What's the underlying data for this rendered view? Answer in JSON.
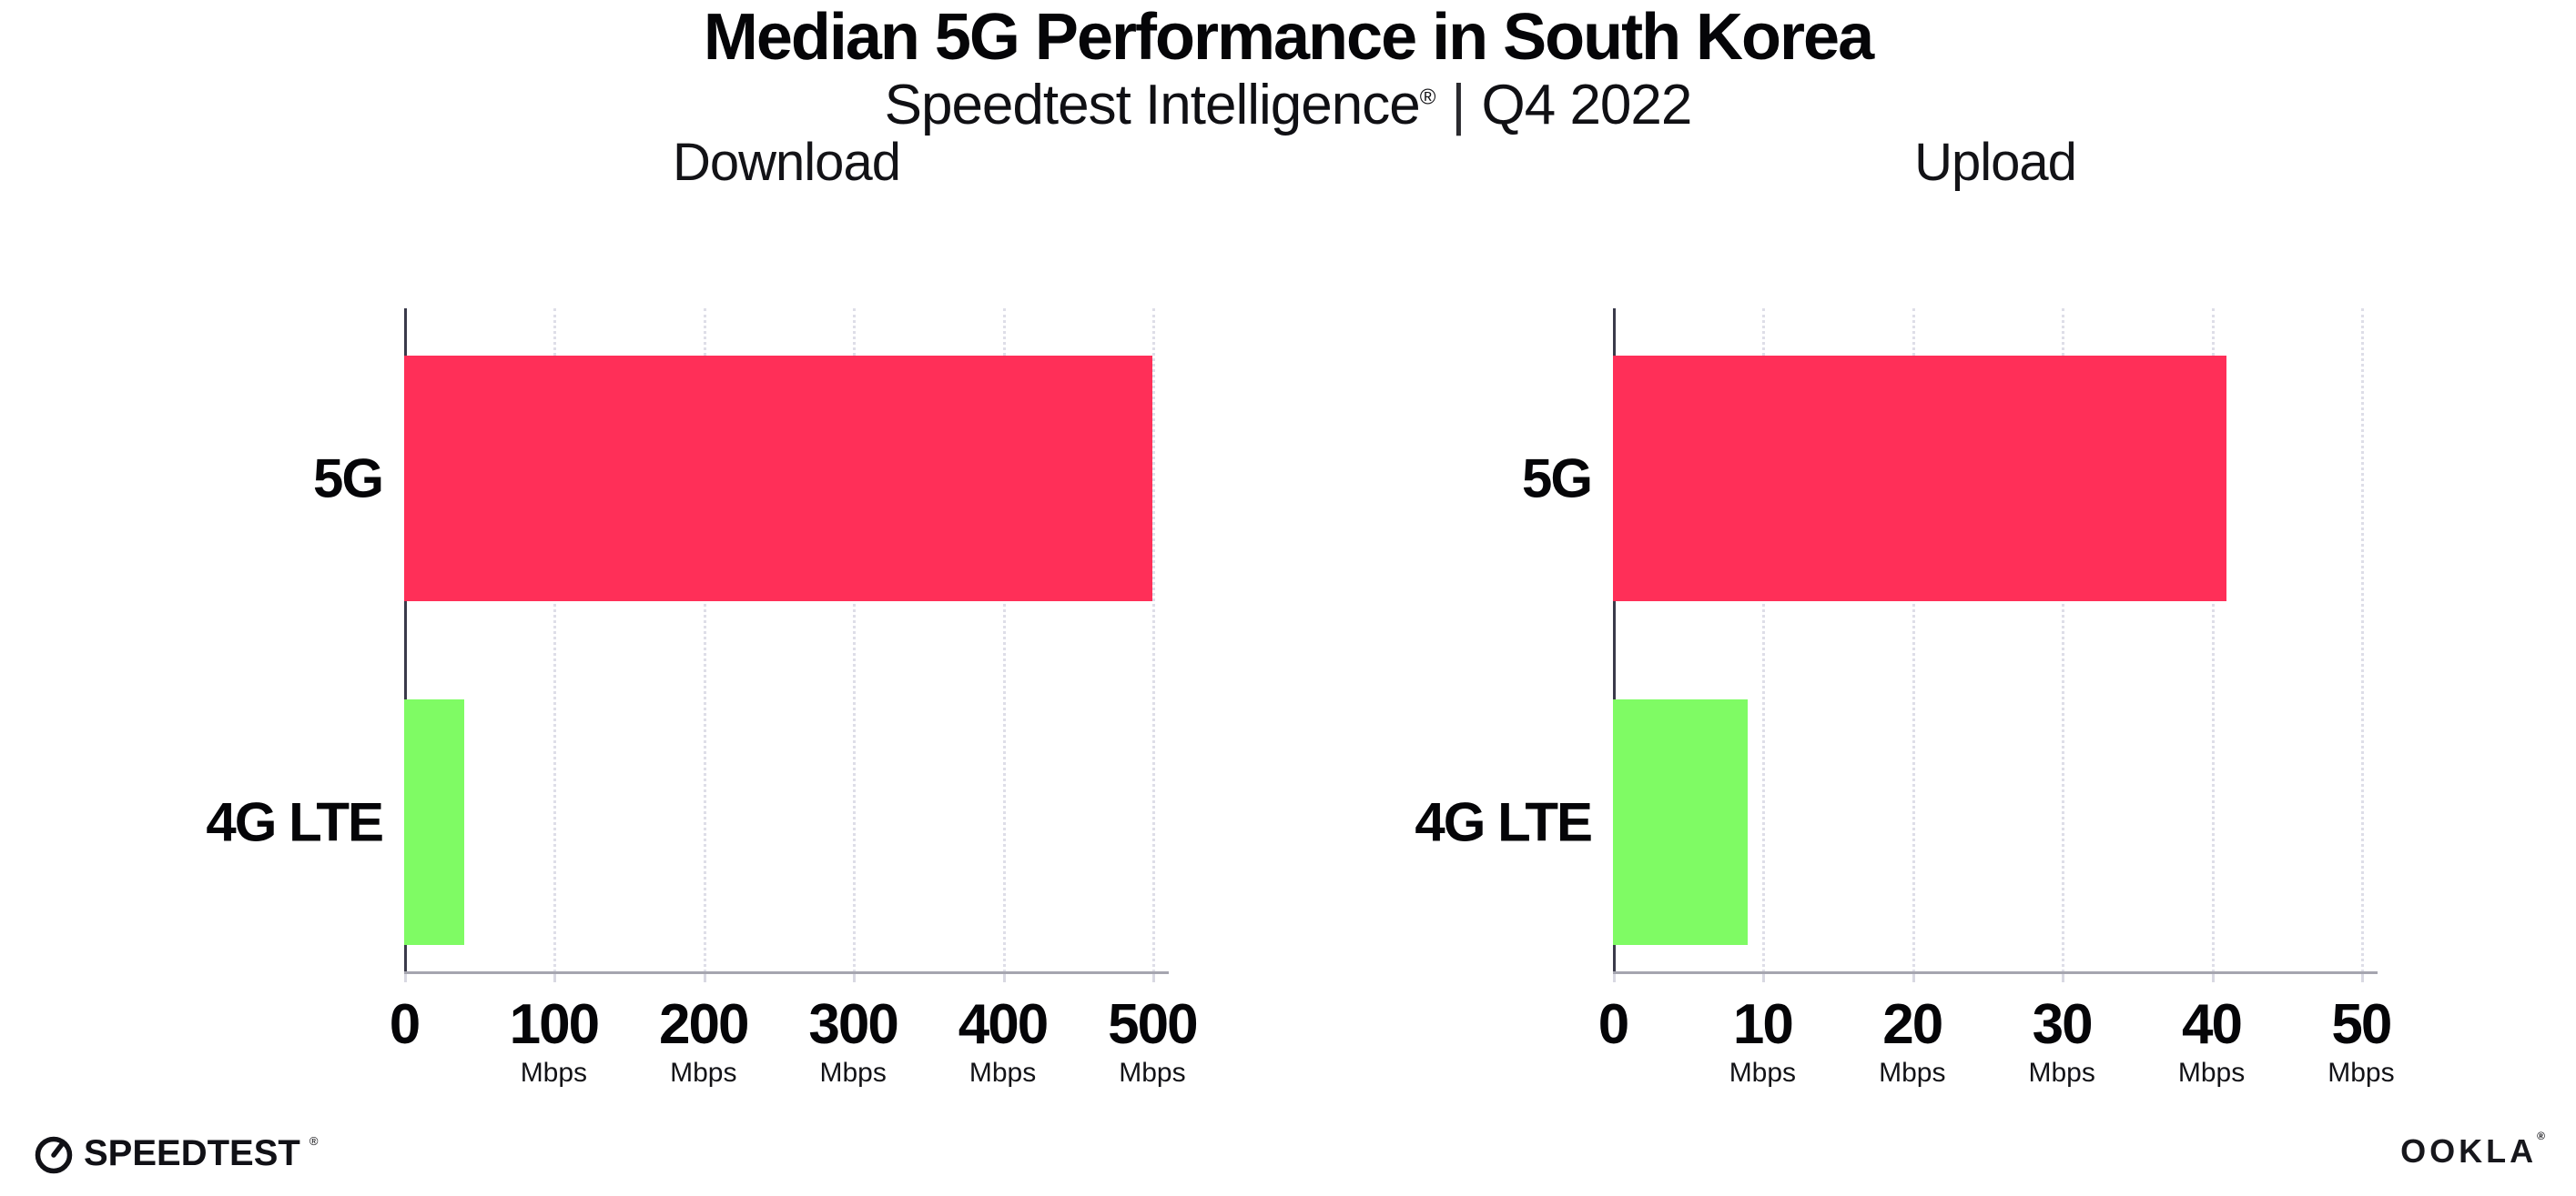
{
  "header": {
    "title": "Median 5G Performance in South Korea",
    "subtitle_product": "Speedtest Intelligence",
    "registered_mark": "®",
    "subtitle_separator": "|",
    "subtitle_period": "Q4 2022"
  },
  "colors": {
    "bar_5g_pink": "#FF2F58",
    "bar_4g_green": "#7FFB64",
    "y_axis_line": "#3A3A4A",
    "baseline": "#A5A5AF",
    "gridline": "#DEDEE8",
    "text": "#050508"
  },
  "chart_data": [
    {
      "type": "bar",
      "orientation": "horizontal",
      "title": "Download",
      "categories": [
        "5G",
        "4G LTE"
      ],
      "values": [
        500,
        40
      ],
      "unit": "Mbps",
      "ticks": [
        0,
        100,
        200,
        300,
        400,
        500
      ],
      "xlim": [
        0,
        511
      ],
      "bar_colors": [
        "#FF2F58",
        "#7FFB64"
      ],
      "grid": "dotted-vertical",
      "legend": false
    },
    {
      "type": "bar",
      "orientation": "horizontal",
      "title": "Upload",
      "categories": [
        "5G",
        "4G LTE"
      ],
      "values": [
        41,
        9
      ],
      "unit": "Mbps",
      "ticks": [
        0,
        10,
        20,
        30,
        40,
        50
      ],
      "xlim": [
        0,
        51.1
      ],
      "bar_colors": [
        "#FF2F58",
        "#7FFB64"
      ],
      "grid": "dotted-vertical",
      "legend": false
    }
  ],
  "footer": {
    "speedtest_label": "SPEEDTEST",
    "speedtest_mark": "®",
    "ookla_label": "OOKLA",
    "ookla_mark": "®"
  }
}
